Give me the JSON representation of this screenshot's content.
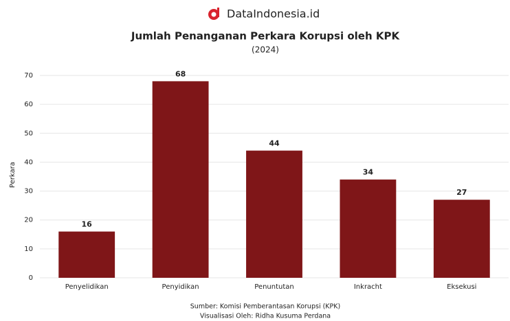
{
  "brand": "DataIndonesia.id",
  "chart_data": {
    "type": "bar",
    "title": "Jumlah Penanganan Perkara Korupsi oleh KPK",
    "subtitle": "(2024)",
    "y_label": "Perkara",
    "categories": [
      "Penyelidikan",
      "Penyidikan",
      "Penuntutan",
      "Inkracht",
      "Eksekusi"
    ],
    "values": [
      16,
      68,
      44,
      34,
      27
    ],
    "color": "#7f1618",
    "ylim": [
      0,
      70
    ],
    "yticks": [
      0,
      10,
      20,
      30,
      40,
      50,
      60,
      70
    ],
    "grid": true
  },
  "footer": {
    "source": "Sumber: Komisi Pemberantasan Korupsi (KPK)",
    "credit": "Visualisasi Oleh: Ridha Kusuma Perdana"
  }
}
